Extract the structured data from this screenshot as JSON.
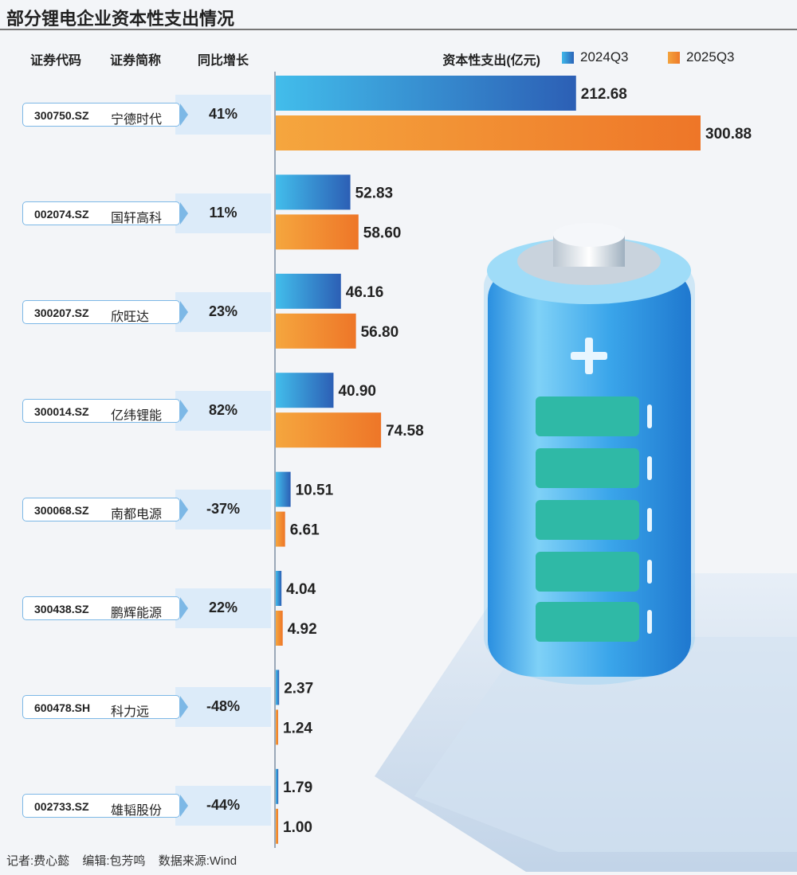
{
  "title": "部分锂电企业资本性支出情况",
  "headers": {
    "code": "证券代码",
    "name": "证券简称",
    "growth": "同比增长"
  },
  "legend": {
    "label": "资本性支出(亿元)",
    "s2024": "2024Q3",
    "s2025": "2025Q3"
  },
  "colors": {
    "s2024_light": "#42bdeb",
    "s2024_dark": "#2c5fb5",
    "s2025_light": "#f5a63e",
    "s2025_dark": "#ee7628"
  },
  "companies": [
    {
      "code": "300750.SZ",
      "name": "宁德时代",
      "growth": "41%"
    },
    {
      "code": "002074.SZ",
      "name": "国轩高科",
      "growth": "11%"
    },
    {
      "code": "300207.SZ",
      "name": "欣旺达",
      "growth": "23%"
    },
    {
      "code": "300014.SZ",
      "name": "亿纬锂能",
      "growth": "82%"
    },
    {
      "code": "300068.SZ",
      "name": "南都电源",
      "growth": "-37%"
    },
    {
      "code": "300438.SZ",
      "name": "鹏辉能源",
      "growth": "22%"
    },
    {
      "code": "600478.SH",
      "name": "科力远",
      "growth": "-48%"
    },
    {
      "code": "002733.SZ",
      "name": "雄韬股份",
      "growth": "-44%"
    }
  ],
  "chart_data": {
    "type": "bar",
    "orientation": "horizontal",
    "title": "部分锂电企业资本性支出情况",
    "unit": "亿元",
    "categories": [
      "宁德时代",
      "国轩高科",
      "欣旺达",
      "亿纬锂能",
      "南都电源",
      "鹏辉能源",
      "科力远",
      "雄韬股份"
    ],
    "series": [
      {
        "name": "2024Q3",
        "values": [
          212.68,
          52.83,
          46.16,
          40.9,
          10.51,
          4.04,
          2.37,
          1.79
        ],
        "labels": [
          "212.68",
          "52.83",
          "46.16",
          "40.90",
          "10.51",
          "4.04",
          "2.37",
          "1.79"
        ]
      },
      {
        "name": "2025Q3",
        "values": [
          300.88,
          58.6,
          56.8,
          74.58,
          6.61,
          4.92,
          1.24,
          1.0
        ],
        "labels": [
          "300.88",
          "58.60",
          "56.80",
          "74.58",
          "6.61",
          "4.92",
          "1.24",
          "1.00"
        ]
      }
    ],
    "xlim": [
      0,
      300.88
    ]
  },
  "footer": {
    "reporter": "记者:费心懿",
    "editor": "编辑:包芳鸣",
    "source": "数据来源:Wind"
  }
}
